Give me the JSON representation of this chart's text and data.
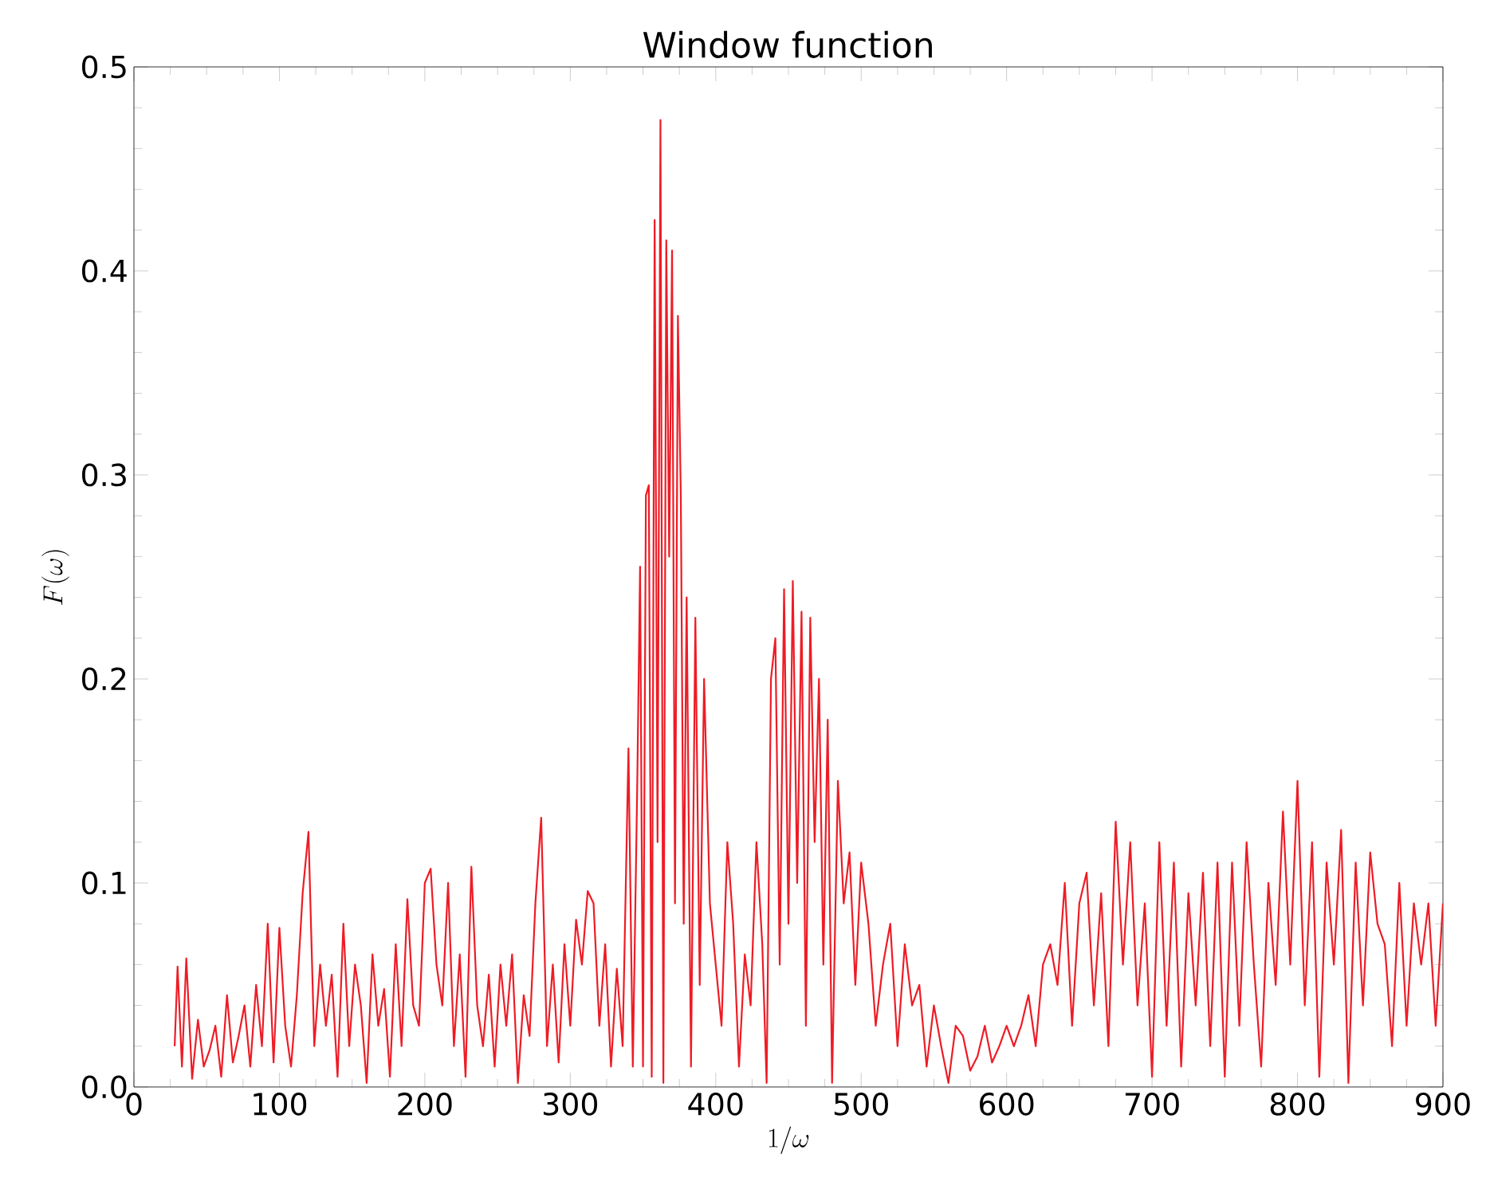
{
  "chart_data": {
    "type": "line",
    "title": "Window function",
    "xlabel": "1/\\omega",
    "ylabel": "F(\\omega)",
    "xlim": [
      0,
      900
    ],
    "ylim": [
      0,
      0.5
    ],
    "xticks": [
      0,
      100,
      200,
      300,
      400,
      500,
      600,
      700,
      800,
      900
    ],
    "yticks": [
      {
        "value": 0,
        "label": "0.0"
      },
      0.1,
      0.2,
      0.3,
      0.4,
      0.5
    ],
    "grid": false,
    "series": [
      {
        "color": "#ee1c25",
        "x": [
          28,
          30,
          33,
          36,
          40,
          44,
          48,
          52,
          56,
          60,
          64,
          68,
          72,
          76,
          80,
          84,
          88,
          92,
          96,
          100,
          104,
          108,
          112,
          116,
          120,
          124,
          128,
          132,
          136,
          140,
          144,
          148,
          152,
          156,
          160,
          164,
          168,
          172,
          176,
          180,
          184,
          188,
          192,
          196,
          200,
          204,
          208,
          212,
          216,
          220,
          224,
          228,
          232,
          236,
          240,
          244,
          248,
          252,
          256,
          260,
          264,
          268,
          272,
          276,
          280,
          284,
          288,
          292,
          296,
          300,
          304,
          308,
          312,
          316,
          320,
          324,
          328,
          332,
          336,
          340,
          343,
          346,
          348,
          350,
          352,
          354,
          356,
          358,
          360,
          362,
          364,
          366,
          368,
          370,
          372,
          374,
          376,
          378,
          380,
          383,
          386,
          389,
          392,
          396,
          400,
          404,
          408,
          412,
          416,
          420,
          424,
          428,
          432,
          435,
          438,
          441,
          444,
          447,
          450,
          453,
          456,
          459,
          462,
          465,
          468,
          471,
          474,
          477,
          480,
          484,
          488,
          492,
          496,
          500,
          505,
          510,
          515,
          520,
          525,
          530,
          535,
          540,
          545,
          550,
          555,
          560,
          565,
          570,
          575,
          580,
          585,
          590,
          595,
          600,
          605,
          610,
          615,
          620,
          625,
          630,
          635,
          640,
          645,
          650,
          655,
          660,
          665,
          670,
          675,
          680,
          685,
          690,
          695,
          700,
          705,
          710,
          715,
          720,
          725,
          730,
          735,
          740,
          745,
          750,
          755,
          760,
          765,
          770,
          775,
          780,
          785,
          790,
          795,
          800,
          805,
          810,
          815,
          820,
          825,
          830,
          835,
          840,
          845,
          850,
          855,
          860,
          865,
          870,
          875,
          880,
          885,
          890,
          895,
          900
        ],
        "values": [
          0.02,
          0.059,
          0.01,
          0.063,
          0.004,
          0.033,
          0.01,
          0.018,
          0.03,
          0.005,
          0.045,
          0.012,
          0.025,
          0.04,
          0.01,
          0.05,
          0.02,
          0.08,
          0.012,
          0.078,
          0.03,
          0.01,
          0.045,
          0.095,
          0.125,
          0.02,
          0.06,
          0.03,
          0.055,
          0.005,
          0.08,
          0.02,
          0.06,
          0.04,
          0.002,
          0.065,
          0.03,
          0.048,
          0.005,
          0.07,
          0.02,
          0.092,
          0.04,
          0.03,
          0.1,
          0.107,
          0.06,
          0.04,
          0.1,
          0.02,
          0.065,
          0.005,
          0.108,
          0.04,
          0.02,
          0.055,
          0.01,
          0.06,
          0.03,
          0.065,
          0.002,
          0.045,
          0.025,
          0.09,
          0.132,
          0.02,
          0.06,
          0.012,
          0.07,
          0.03,
          0.082,
          0.06,
          0.096,
          0.09,
          0.03,
          0.07,
          0.01,
          0.058,
          0.02,
          0.166,
          0.01,
          0.146,
          0.255,
          0.01,
          0.29,
          0.295,
          0.005,
          0.425,
          0.12,
          0.474,
          0.002,
          0.415,
          0.26,
          0.41,
          0.09,
          0.378,
          0.29,
          0.08,
          0.24,
          0.01,
          0.23,
          0.05,
          0.2,
          0.09,
          0.06,
          0.03,
          0.12,
          0.08,
          0.01,
          0.065,
          0.04,
          0.12,
          0.07,
          0.002,
          0.2,
          0.22,
          0.06,
          0.244,
          0.08,
          0.248,
          0.1,
          0.233,
          0.03,
          0.23,
          0.12,
          0.2,
          0.06,
          0.18,
          0.002,
          0.15,
          0.09,
          0.115,
          0.05,
          0.11,
          0.08,
          0.03,
          0.06,
          0.08,
          0.02,
          0.07,
          0.04,
          0.05,
          0.01,
          0.04,
          0.02,
          0.002,
          0.03,
          0.025,
          0.008,
          0.015,
          0.03,
          0.012,
          0.02,
          0.03,
          0.02,
          0.03,
          0.045,
          0.02,
          0.06,
          0.07,
          0.05,
          0.1,
          0.03,
          0.09,
          0.105,
          0.04,
          0.095,
          0.02,
          0.13,
          0.06,
          0.12,
          0.04,
          0.09,
          0.005,
          0.12,
          0.03,
          0.11,
          0.01,
          0.095,
          0.04,
          0.105,
          0.02,
          0.11,
          0.005,
          0.11,
          0.03,
          0.12,
          0.06,
          0.01,
          0.1,
          0.05,
          0.135,
          0.06,
          0.15,
          0.04,
          0.12,
          0.005,
          0.11,
          0.06,
          0.126,
          0.002,
          0.11,
          0.04,
          0.115,
          0.08,
          0.07,
          0.02,
          0.1,
          0.03,
          0.09,
          0.06,
          0.09,
          0.03,
          0.09
        ]
      }
    ]
  }
}
